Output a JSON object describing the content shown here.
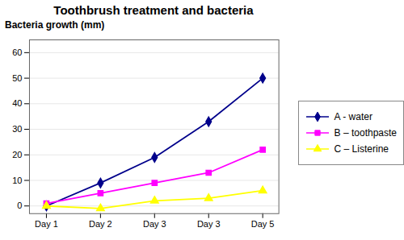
{
  "chart_data": {
    "type": "line",
    "title": "Toothbrush treatment and bacteria",
    "ylabel": "Bacteria growth (mm)",
    "categories": [
      "Day 1",
      "Day 2",
      "Day 3",
      "Day 3",
      "Day 5"
    ],
    "series": [
      {
        "name": "A - water",
        "values": [
          0,
          9,
          19,
          33,
          50
        ],
        "color": "#00008B",
        "marker": "diamond"
      },
      {
        "name": "B – toothpaste",
        "values": [
          1,
          5,
          9,
          13,
          22
        ],
        "color": "#FF00FF",
        "marker": "square"
      },
      {
        "name": "C – Listerine",
        "values": [
          0,
          -1,
          2,
          3,
          6
        ],
        "color": "#FFFF00",
        "marker": "triangle"
      }
    ],
    "ylim": [
      -3,
      65
    ],
    "yticks": [
      0,
      10,
      20,
      30,
      40,
      50,
      60
    ],
    "grid": true,
    "legend": "right"
  }
}
